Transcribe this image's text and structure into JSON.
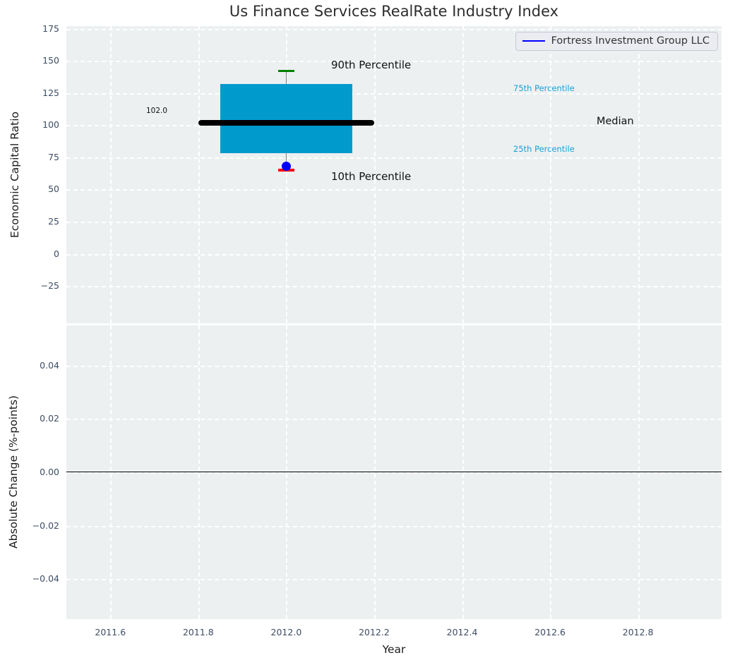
{
  "title": "Us Finance Services RealRate Industry Index",
  "legend": {
    "label": "Fortress Investment Group LLC",
    "line_color": "#0000FF",
    "position": "upper right"
  },
  "annotations": {
    "p90": "90th Percentile",
    "p75": "75th Percentile",
    "median": "Median",
    "p25": "25th Percentile",
    "p10": "10th Percentile",
    "median_value": "102.0"
  },
  "axes": {
    "top": {
      "ylabel": "Economic Capital Ratio"
    },
    "bottom": {
      "ylabel": "Absolute Change (%-points)",
      "xlabel": "Year"
    }
  },
  "chart_data": [
    {
      "type": "box",
      "title": "Us Finance Services RealRate Industry Index",
      "ylabel": "Economic Capital Ratio",
      "x_center": 2012,
      "box_width": 0.3,
      "median_line_width": 0.4,
      "cap_width": 0.038,
      "percentiles": {
        "p10": 65,
        "p25": 78,
        "median": 102,
        "p75": 132,
        "p90": 142
      },
      "median_label": "102.0",
      "company_point": {
        "name": "Fortress Investment Group LLC",
        "x": 2012,
        "value": 68
      },
      "xlim": [
        2011.5,
        2012.99
      ],
      "ylim": [
        -54,
        177
      ],
      "yticks": [
        {
          "v": 175,
          "label": "175"
        },
        {
          "v": 150,
          "label": "150"
        },
        {
          "v": 125,
          "label": "125"
        },
        {
          "v": 100,
          "label": "100"
        },
        {
          "v": 75,
          "label": "75"
        },
        {
          "v": 50,
          "label": "50"
        },
        {
          "v": 25,
          "label": "25"
        },
        {
          "v": 0,
          "label": "0"
        },
        {
          "v": -25,
          "label": "−25"
        }
      ],
      "grid": true,
      "legend_entries": [
        "Fortress Investment Group LLC"
      ],
      "colors": {
        "box": "#009ACD",
        "median": "#000000",
        "p90_cap": "#008000",
        "p10_cap": "#FF0000",
        "point": "#0000FF",
        "whisker": "#7F7F7F",
        "background": "#ECF0F1",
        "grid": "#FFFFFF"
      }
    },
    {
      "type": "line",
      "ylabel": "Absolute Change (%-points)",
      "xlabel": "Year",
      "series": [],
      "zero_line_y": 0,
      "xlim": [
        2011.5,
        2012.99
      ],
      "ylim": [
        -0.055,
        0.055
      ],
      "yticks": [
        {
          "v": 0.04,
          "label": "0.04"
        },
        {
          "v": 0.02,
          "label": "0.02"
        },
        {
          "v": 0,
          "label": "0.00"
        },
        {
          "v": -0.02,
          "label": "−0.02"
        },
        {
          "v": -0.04,
          "label": "−0.04"
        }
      ],
      "xticks": [
        {
          "v": 2011.6,
          "label": "2011.6"
        },
        {
          "v": 2011.8,
          "label": "2011.8"
        },
        {
          "v": 2012.0,
          "label": "2012.0"
        },
        {
          "v": 2012.2,
          "label": "2012.2"
        },
        {
          "v": 2012.4,
          "label": "2012.4"
        },
        {
          "v": 2012.6,
          "label": "2012.6"
        },
        {
          "v": 2012.8,
          "label": "2012.8"
        }
      ],
      "grid": true
    }
  ]
}
